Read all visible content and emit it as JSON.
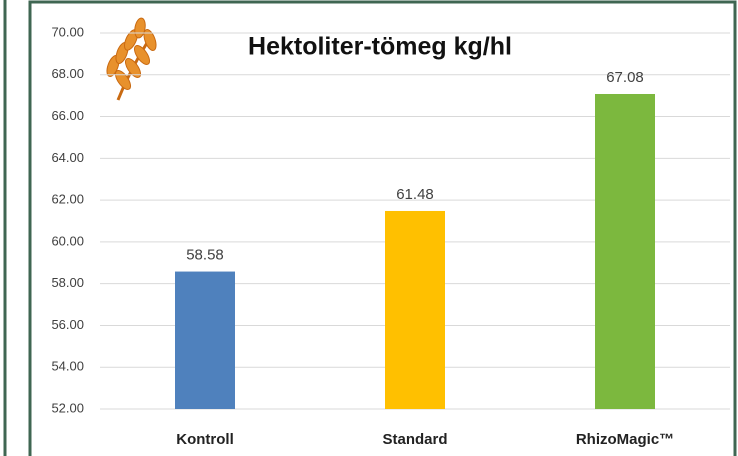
{
  "chart_data": {
    "type": "bar",
    "title": "Hektoliter-tömeg kg/hl",
    "categories": [
      "Kontroll",
      "Standard",
      "RhizoMagic™"
    ],
    "values": [
      58.58,
      61.48,
      67.08
    ],
    "colors": [
      "#4f81bd",
      "#ffc000",
      "#7cb83e"
    ],
    "ylim": [
      52,
      70
    ],
    "yticks": [
      {
        "value": 52,
        "label": "52.00"
      },
      {
        "value": 54,
        "label": "54.00"
      },
      {
        "value": 56,
        "label": "56.00"
      },
      {
        "value": 58,
        "label": "58.00"
      },
      {
        "value": 60,
        "label": "60.00"
      },
      {
        "value": 62,
        "label": "62.00"
      },
      {
        "value": 64,
        "label": "64.00"
      },
      {
        "value": 66,
        "label": "66.00"
      },
      {
        "value": 68,
        "label": "68.00"
      },
      {
        "value": 70,
        "label": "70.00"
      }
    ],
    "grid": true
  }
}
